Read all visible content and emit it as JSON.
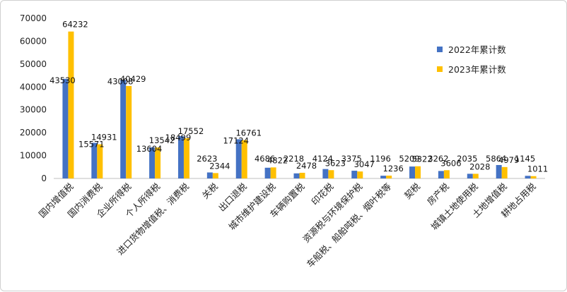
{
  "chart_data": {
    "type": "bar",
    "title": "",
    "xlabel": "",
    "ylabel": "",
    "ylim": [
      0,
      70000
    ],
    "yticks": [
      0,
      10000,
      20000,
      30000,
      40000,
      50000,
      60000,
      70000
    ],
    "grid": false,
    "legend_position": "right",
    "categories": [
      "国内增值税",
      "国内消费税",
      "企业所得税",
      "个人所得税",
      "进口货物增值税、消费税",
      "关税",
      "出口退税",
      "城市维护建设税",
      "车辆购置税",
      "印花税",
      "资源税与环境保护税",
      "车船税、船舶吨税、烟叶税等",
      "契税",
      "房产税",
      "城镇土地使用税",
      "土地增值税",
      "耕地占用税"
    ],
    "series": [
      {
        "name": "2022年累计数",
        "color": "#4472C4",
        "values": [
          43530,
          15571,
          43008,
          13604,
          18499,
          2623,
          17124,
          4686,
          2218,
          4124,
          3375,
          1196,
          5209,
          3262,
          2035,
          5864,
          1145
        ]
      },
      {
        "name": "2023年累计数",
        "color": "#FFC000",
        "values": [
          64232,
          14931,
          40429,
          13542,
          17552,
          2344,
          16761,
          4822,
          2478,
          3623,
          3047,
          1236,
          5322,
          3606,
          2028,
          4979,
          1011
        ]
      }
    ]
  }
}
